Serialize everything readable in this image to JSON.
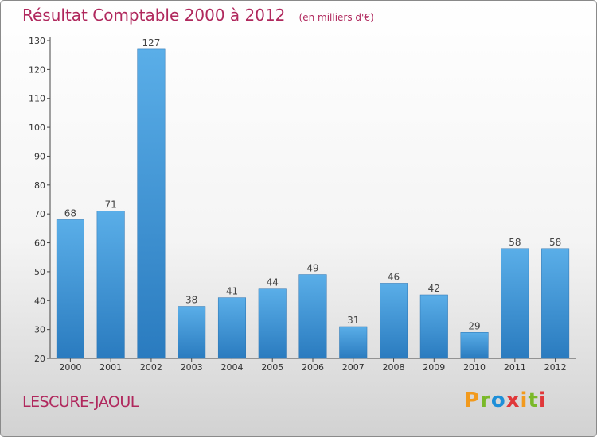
{
  "chart_data": {
    "type": "bar",
    "title": "Résultat Comptable 2000 à 2012",
    "subtitle": "(en milliers d'€)",
    "categories": [
      "2000",
      "2001",
      "2002",
      "2003",
      "2004",
      "2005",
      "2006",
      "2007",
      "2008",
      "2009",
      "2010",
      "2011",
      "2012"
    ],
    "values": [
      68,
      71,
      127,
      38,
      41,
      44,
      49,
      31,
      46,
      42,
      29,
      58,
      58
    ],
    "ylim": [
      20,
      130
    ],
    "yticks": [
      20,
      30,
      40,
      50,
      60,
      70,
      80,
      90,
      100,
      110,
      120,
      130
    ],
    "xlabel": "",
    "ylabel": "",
    "grid": false,
    "bar_color": "#3a8fd4"
  },
  "footer": {
    "town": "LESCURE-JAOUL",
    "logo_letters": [
      "P",
      "r",
      "o",
      "x",
      "i",
      "t",
      "i"
    ],
    "logo_colors": [
      "#f29a1d",
      "#7ab929",
      "#1e8fd8",
      "#e0383a",
      "#f29a1d",
      "#7ab929",
      "#e0383a"
    ]
  },
  "colors": {
    "accent": "#b0285d"
  }
}
